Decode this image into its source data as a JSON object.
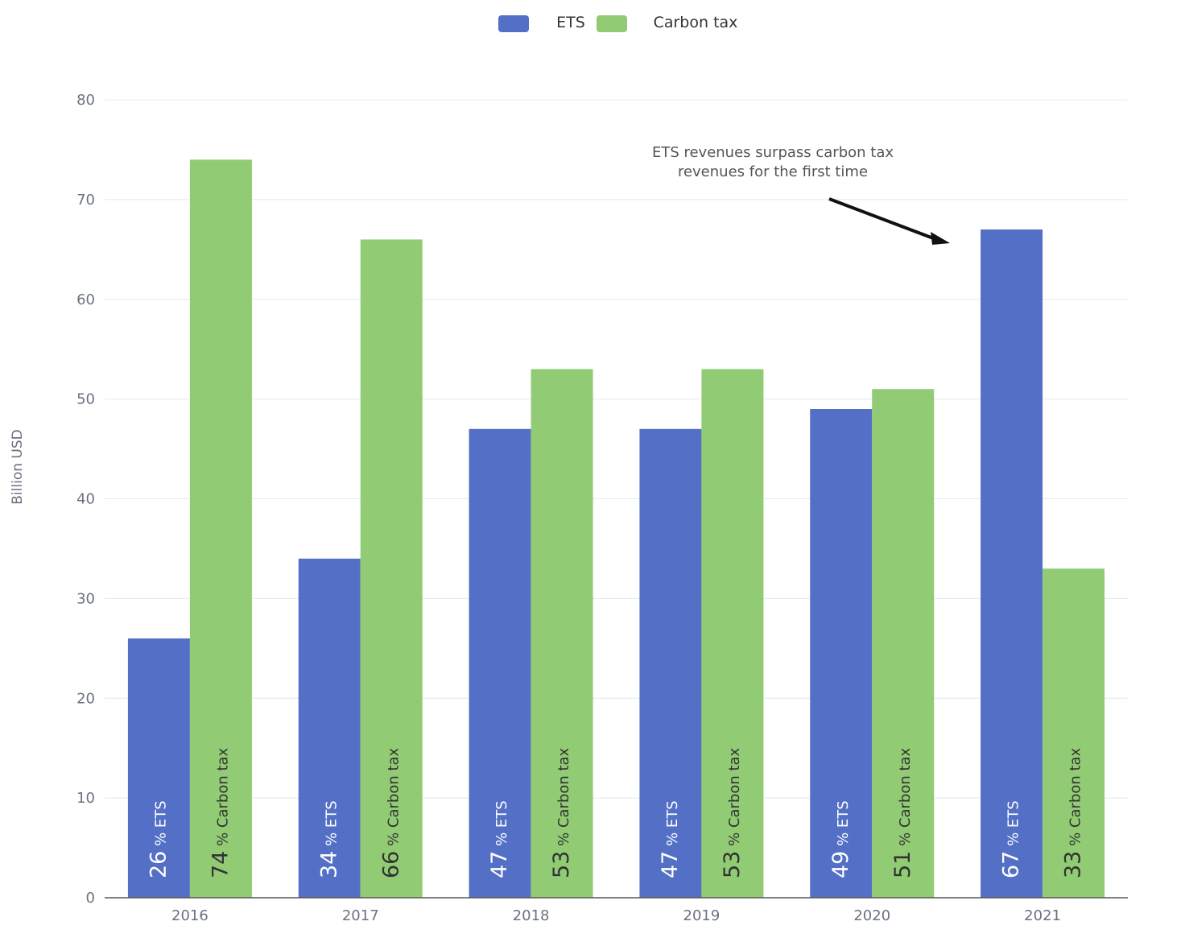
{
  "chart_data": {
    "type": "bar",
    "categories": [
      "2016",
      "2017",
      "2018",
      "2019",
      "2020",
      "2021"
    ],
    "series": [
      {
        "name": "ETS",
        "values": [
          26,
          34,
          47,
          47,
          49,
          67
        ],
        "color": "#5470c6"
      },
      {
        "name": "Carbon tax",
        "values": [
          74,
          66,
          53,
          53,
          51,
          33
        ],
        "color": "#91cc75"
      }
    ],
    "bar_labels": {
      "ETS": [
        "26 % ETS",
        "34 % ETS",
        "47 % ETS",
        "47 % ETS",
        "49 % ETS",
        "67 % ETS"
      ],
      "Carbon tax": [
        "74 % Carbon tax",
        "66 % Carbon tax",
        "53 % Carbon tax",
        "53 % Carbon tax",
        "51 % Carbon tax",
        "33 % Carbon tax"
      ]
    },
    "ylabel": "Billion USD",
    "xlabel": "",
    "ylim": [
      0,
      80
    ],
    "yticks": [
      0,
      10,
      20,
      30,
      40,
      50,
      60,
      70,
      80
    ],
    "grid": true,
    "legend": "top-center",
    "annotation": {
      "lines": [
        "ETS revenues surpass carbon tax",
        "revenues for the first time"
      ],
      "target_category": "2021"
    }
  }
}
